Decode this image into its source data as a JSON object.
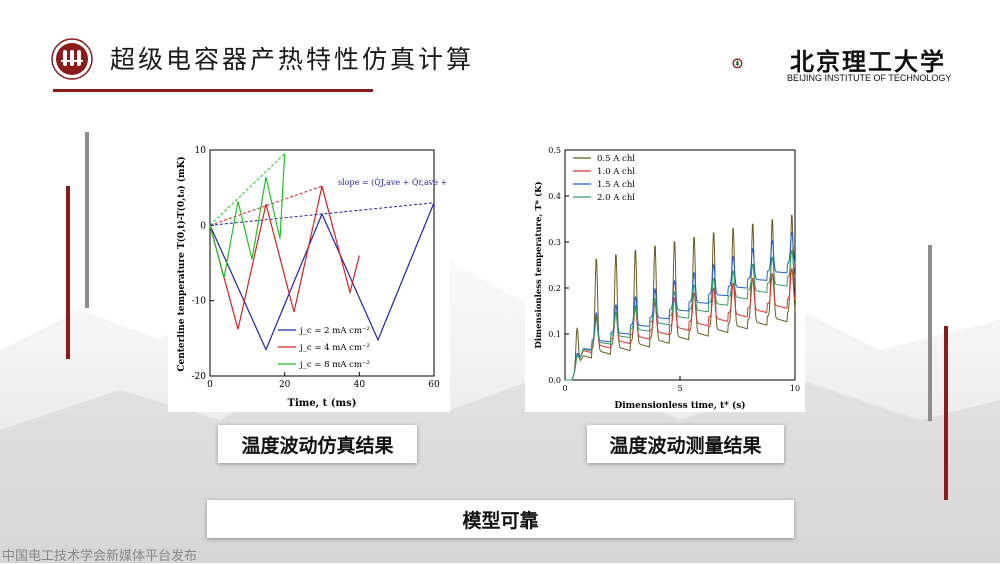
{
  "header": {
    "title": "超级电容器产热特性仿真计算",
    "logo_name": "北京理工大学",
    "logo_sub": "BEIJING INSTITUTE OF TECHNOLOGY",
    "accent_color": "#8b1a1a"
  },
  "captions": {
    "left": "温度波动仿真结果",
    "right": "温度波动测量结果",
    "bottom": "模型可靠"
  },
  "footer": "中国电工技术学会新媒体平台发布",
  "chart_data": [
    {
      "type": "line",
      "xlabel": "Time, t (ms)",
      "ylabel": "Centerline temperature T(0,t)-T(0,t₀) (mK)",
      "xlim": [
        0,
        60
      ],
      "ylim": [
        -20,
        10
      ],
      "xticks": [
        "0",
        "20",
        "40",
        "60"
      ],
      "yticks": [
        "10",
        "0",
        "-10",
        "-20"
      ],
      "annotation": "slope = (Q̇J,ave + Q̇r,ave + Q̇irr,EDL)/Cv",
      "legend": [
        "j_c = 2 mA cm⁻²",
        "j_c = 4 mA cm⁻²",
        "j_c = 8 mA cm⁻²"
      ],
      "series": [
        {
          "name": "j_c = 2 mA cm⁻²",
          "color": "#1f24a8",
          "x": [
            0,
            15,
            30,
            45,
            60
          ],
          "y": [
            0,
            -16.5,
            1.5,
            -15.2,
            3
          ]
        },
        {
          "name": "j_c = 4 mA cm⁻²",
          "color": "#d62020",
          "x": [
            0,
            7.5,
            15,
            22.5,
            30,
            37.5,
            40
          ],
          "y": [
            0,
            -13.8,
            2.8,
            -11.5,
            5.2,
            -8.9,
            -4
          ]
        },
        {
          "name": "j_c = 8 mA cm⁻²",
          "color": "#22c022",
          "x": [
            0,
            3.75,
            7.5,
            11.25,
            15,
            18.75,
            20
          ],
          "y": [
            0,
            -7,
            3.2,
            -4.5,
            6.4,
            -1.8,
            9.5
          ]
        }
      ],
      "trend_lines": [
        {
          "color": "#22c022",
          "x": [
            0,
            20
          ],
          "y": [
            0,
            9.5
          ]
        },
        {
          "color": "#d62020",
          "x": [
            0,
            30
          ],
          "y": [
            0,
            5.2
          ]
        },
        {
          "color": "#1f24a8",
          "x": [
            0,
            60
          ],
          "y": [
            0,
            3
          ]
        }
      ]
    },
    {
      "type": "line",
      "xlabel": "Dimensionless time, t* (s)",
      "ylabel": "Dimensionless temperature, T* (K)",
      "xlim": [
        0,
        10
      ],
      "ylim": [
        0,
        0.5
      ],
      "xticks": [
        "0",
        "5",
        "10"
      ],
      "yticks": [
        "0.5",
        "0.4",
        "0.3",
        "0.2",
        "0.1",
        "0.0"
      ],
      "legend": [
        "0.5 A chl",
        "1.0 A chl",
        "1.5 A chl",
        "2.0 A chl"
      ],
      "series": [
        {
          "name": "0.5 A chl",
          "color": "#6b5a1e",
          "base_start": 0.06,
          "base_end": 0.15,
          "peak": 0.2,
          "peak_growth": 0.02
        },
        {
          "name": "1.0 A chl",
          "color": "#e03030",
          "base_start": 0.07,
          "base_end": 0.18,
          "peak": 0.06,
          "peak_growth": 0.01
        },
        {
          "name": "1.5 A chl",
          "color": "#2060d0",
          "base_start": 0.07,
          "base_end": 0.26,
          "peak": 0.06,
          "peak_growth": 0.01
        },
        {
          "name": "2.0 A chl",
          "color": "#30a060",
          "base_start": 0.07,
          "base_end": 0.23,
          "peak": 0.05,
          "peak_growth": 0.01
        }
      ],
      "period": 0.85
    }
  ]
}
